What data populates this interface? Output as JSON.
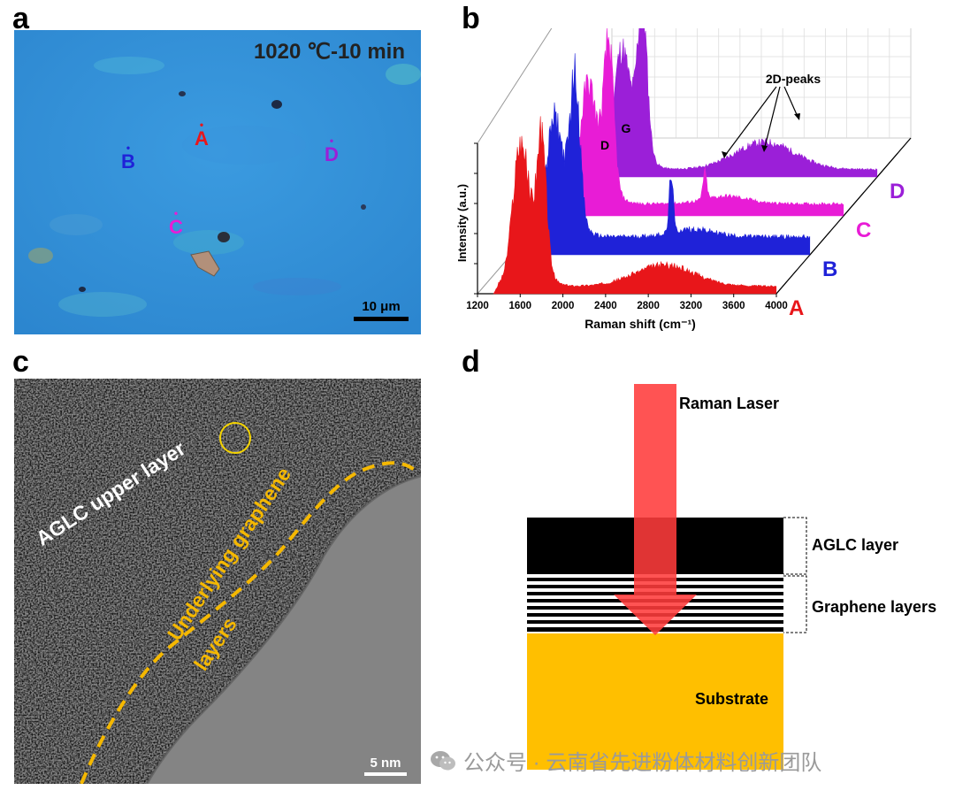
{
  "panels": {
    "a": {
      "letter": "a",
      "condition": "1020 ℃-10 min",
      "points": [
        {
          "label": "A",
          "color": "#e8161a"
        },
        {
          "label": "B",
          "color": "#1f22d8"
        },
        {
          "label": "C",
          "color": "#e81cd6"
        },
        {
          "label": "D",
          "color": "#9b1fd8"
        }
      ],
      "scale_bar": "10 μm"
    },
    "b": {
      "letter": "b",
      "annotations": {
        "peaks_2d": "2D-peaks",
        "d_peak": "D",
        "g_peak": "G"
      }
    },
    "c": {
      "letter": "c",
      "label_upper": "AGLC upper layer",
      "label_under_1": "Underlying graphene",
      "label_under_2": "layers",
      "scale_bar": "5 nm"
    },
    "d": {
      "letter": "d",
      "laser_label": "Raman Laser",
      "layer_1": "AGLC layer",
      "layer_2": "Graphene layers",
      "substrate": "Substrate",
      "colors": {
        "laser": "#ff3b3b",
        "aglc": "#000000",
        "substrate": "#ffbf00"
      }
    }
  },
  "chart_data": {
    "type": "line",
    "subtype": "3d-waterfall",
    "xlabel": "Raman shift (cm⁻¹)",
    "ylabel": "Intensity (a.u.)",
    "xlim": [
      1200,
      4000
    ],
    "x_ticks": [
      "1200",
      "1600",
      "2000",
      "2400",
      "2800",
      "3200",
      "3600",
      "4000"
    ],
    "series": [
      {
        "name": "A",
        "color": "#e8161a",
        "d_peak": 0.78,
        "g_peak": 0.82,
        "peak_2d": 0.14,
        "peak_2d_shape": "broad",
        "baseline_after_g": 0.05
      },
      {
        "name": "B",
        "color": "#1f22d8",
        "d_peak": 0.6,
        "g_peak": 0.9,
        "peak_2d": 0.4,
        "peak_2d_shape": "sharp",
        "baseline_after_g": 0.12
      },
      {
        "name": "C",
        "color": "#e81cd6",
        "d_peak": 0.62,
        "g_peak": 0.9,
        "peak_2d": 0.18,
        "peak_2d_shape": "sharp",
        "baseline_after_g": 0.08
      },
      {
        "name": "D",
        "color": "#9b1fd8",
        "d_peak": 0.62,
        "g_peak": 0.92,
        "peak_2d": 0.18,
        "peak_2d_shape": "broad",
        "baseline_after_g": 0.05
      }
    ]
  },
  "watermark": {
    "text": "公众号 · 云南省先进粉体材料创新团队",
    "icon": "wechat-icon"
  }
}
